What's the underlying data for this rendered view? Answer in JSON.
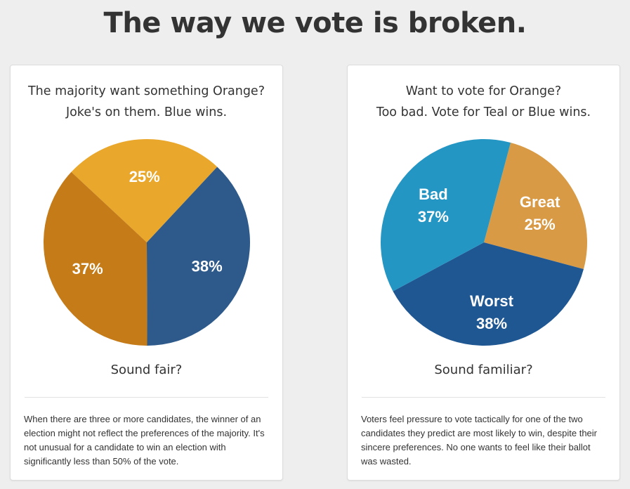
{
  "page_title": "The way we vote is broken.",
  "cards": [
    {
      "heading_line1": "The majority want something Orange?",
      "heading_line2": "Joke's on them. Blue wins.",
      "question": "Sound fair?",
      "body": "When there are three or more candidates, the winner of an election might not reflect the preferences of the majority. It's not unusual for a candidate to win an election with significantly less than 50% of the vote."
    },
    {
      "heading_line1": "Want to vote for Orange?",
      "heading_line2": "Too bad. Vote for Teal or Blue wins.",
      "question": "Sound familiar?",
      "body": "Voters feel pressure to vote tactically for one of the two candidates they predict are most likely to win, despite their sincere preferences. No one wants to feel like their ballot was wasted."
    }
  ],
  "chart_data": [
    {
      "type": "pie",
      "slices": [
        {
          "label": "",
          "value_label": "25%",
          "value": 25,
          "color": "#e9a72c"
        },
        {
          "label": "",
          "value_label": "38%",
          "value": 38,
          "color": "#2d5a8b"
        },
        {
          "label": "",
          "value_label": "37%",
          "value": 37,
          "color": "#c47b18"
        }
      ]
    },
    {
      "type": "pie",
      "slices": [
        {
          "label": "Great",
          "value_label": "25%",
          "value": 25,
          "color": "#d89a45"
        },
        {
          "label": "Worst",
          "value_label": "38%",
          "value": 38,
          "color": "#1f5793"
        },
        {
          "label": "Bad",
          "value_label": "37%",
          "value": 37,
          "color": "#2496c4"
        }
      ]
    }
  ]
}
